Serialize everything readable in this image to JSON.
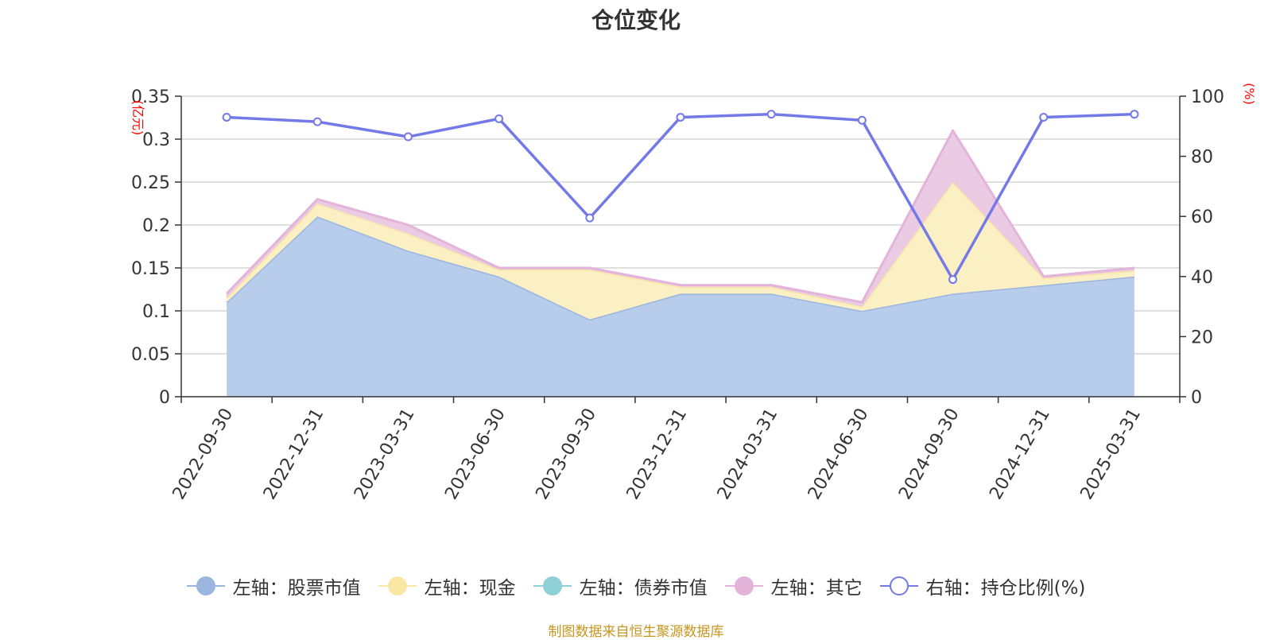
{
  "title": "仓位变化",
  "footer": "制图数据来自恒生聚源数据库",
  "chart_data": {
    "type": "area",
    "categories": [
      "2022-09-30",
      "2022-12-31",
      "2023-03-31",
      "2023-06-30",
      "2023-09-30",
      "2023-12-31",
      "2024-03-31",
      "2024-06-30",
      "2024-09-30",
      "2024-12-31",
      "2025-03-31"
    ],
    "y_left": {
      "label": "(亿元)",
      "ticks": [
        "0",
        "0.05",
        "0.1",
        "0.15",
        "0.2",
        "0.25",
        "0.3",
        "0.35"
      ],
      "range": [
        0,
        0.35
      ]
    },
    "y_right": {
      "label": "(%)",
      "ticks": [
        "0",
        "20",
        "40",
        "60",
        "80",
        "100"
      ],
      "range": [
        0,
        100
      ]
    },
    "grid": true,
    "legend_position": "bottom",
    "series": [
      {
        "name": "左轴：股票市值",
        "axis": "left",
        "stack": true,
        "color": "#9ab6df",
        "fill": "#b8cceb",
        "values": [
          0.11,
          0.21,
          0.17,
          0.14,
          0.09,
          0.12,
          0.12,
          0.1,
          0.12,
          0.13,
          0.14
        ]
      },
      {
        "name": "左轴：现金",
        "axis": "left",
        "stack": true,
        "color": "#f9e8a4",
        "fill": "#fbefc4",
        "values": [
          0.005,
          0.015,
          0.02,
          0.008,
          0.058,
          0.008,
          0.008,
          0.005,
          0.13,
          0.008,
          0.007
        ]
      },
      {
        "name": "左轴：债券市值",
        "axis": "left",
        "stack": true,
        "color": "#8ed0d3",
        "fill": "#b6e2e3",
        "values": [
          0,
          0,
          0,
          0,
          0,
          0,
          0,
          0,
          0,
          0,
          0
        ]
      },
      {
        "name": "左轴：其它",
        "axis": "left",
        "stack": true,
        "color": "#e3b3d9",
        "fill": "#ebcae4",
        "values": [
          0.005,
          0.005,
          0.01,
          0.002,
          0.002,
          0.002,
          0.002,
          0.005,
          0.06,
          0.002,
          0.003
        ]
      },
      {
        "name": "右轴：持仓比例(%)",
        "axis": "right",
        "stack": false,
        "color": "#7479e8",
        "values": [
          93,
          91.5,
          86.5,
          92.5,
          59.5,
          93,
          94,
          92,
          39,
          93,
          94
        ]
      }
    ]
  }
}
